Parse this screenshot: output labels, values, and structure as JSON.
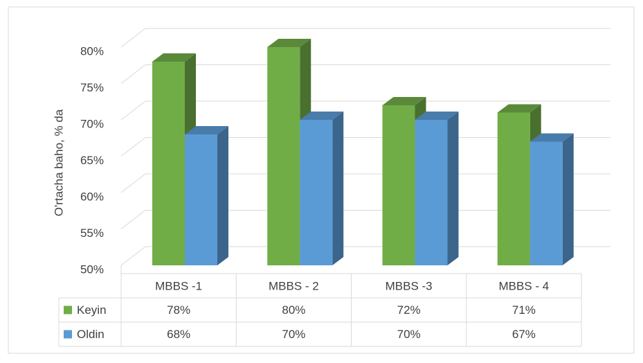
{
  "chart_data": {
    "type": "bar3d",
    "y_label": "O'rtacha baho, % da",
    "categories": [
      "MBBS -1",
      "MBBS - 2",
      "MBBS -3",
      "MBBS - 4"
    ],
    "series": [
      {
        "name": "Keyin",
        "color": "#70ad47",
        "values": [
          78,
          80,
          72,
          71
        ],
        "value_labels": [
          "78%",
          "80%",
          "72%",
          "71%"
        ]
      },
      {
        "name": "Oldin",
        "color": "#5b9bd5",
        "values": [
          68,
          70,
          70,
          67
        ],
        "value_labels": [
          "68%",
          "70%",
          "70%",
          "67%"
        ]
      }
    ],
    "ylim": [
      50,
      80
    ],
    "yticks": [
      {
        "value": 50,
        "label": "50%"
      },
      {
        "value": 55,
        "label": "55%"
      },
      {
        "value": 60,
        "label": "60%"
      },
      {
        "value": 65,
        "label": "65%"
      },
      {
        "value": 70,
        "label": "70%"
      },
      {
        "value": 75,
        "label": "75%"
      },
      {
        "value": 80,
        "label": "80%"
      }
    ],
    "grid": true
  }
}
